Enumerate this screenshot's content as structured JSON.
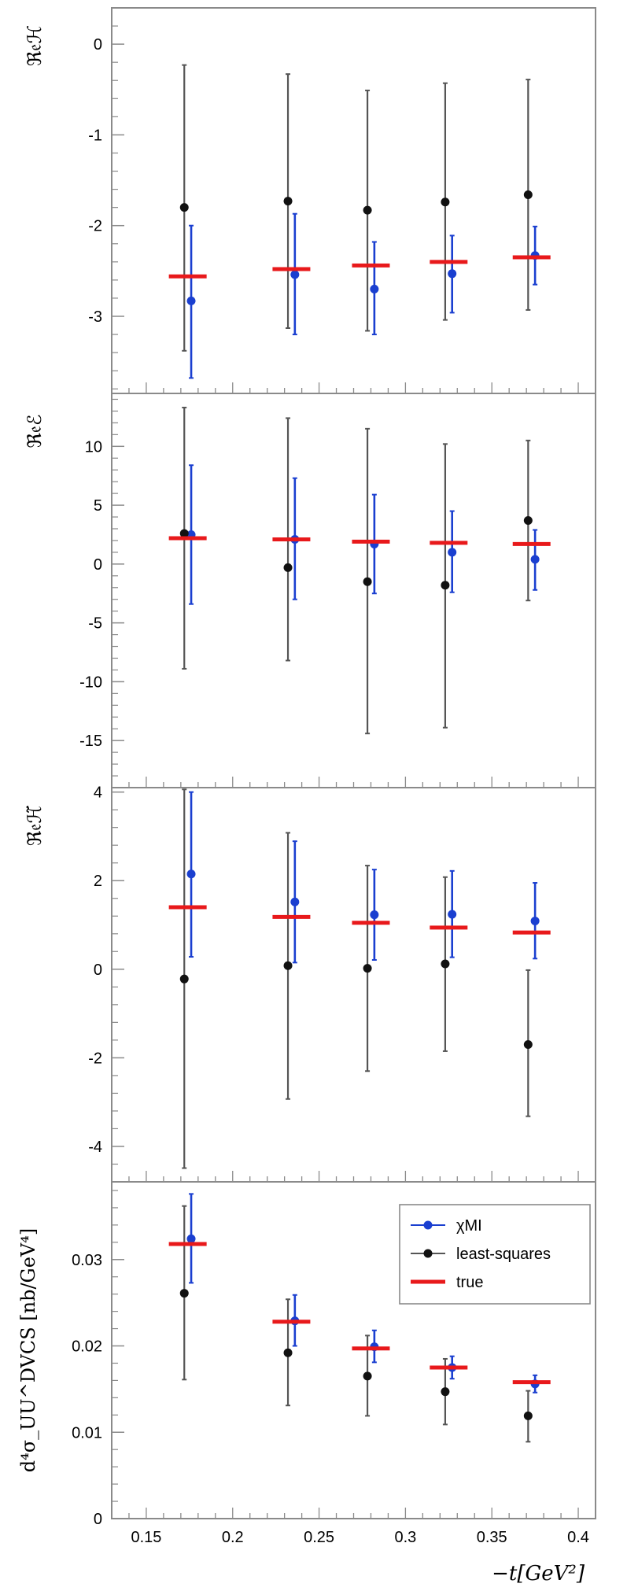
{
  "chart_data": [
    {
      "type": "scatter",
      "ylabel": "ℜ𝔢ℋ",
      "ylim": [
        -3.85,
        0.4
      ],
      "yticks": [
        0,
        -1,
        -2,
        -3
      ],
      "ytick_labels": [
        "0",
        "-1",
        "-2",
        "-3"
      ],
      "series": [
        {
          "name": "χMI",
          "color": "#1a3fd0",
          "points": [
            {
              "x": 0.176,
              "y": -2.83,
              "lo": -3.68,
              "hi": -2.0
            },
            {
              "x": 0.236,
              "y": -2.54,
              "lo": -3.2,
              "hi": -1.87
            },
            {
              "x": 0.282,
              "y": -2.7,
              "lo": -3.2,
              "hi": -2.18
            },
            {
              "x": 0.327,
              "y": -2.53,
              "lo": -2.96,
              "hi": -2.11
            },
            {
              "x": 0.375,
              "y": -2.33,
              "lo": -2.65,
              "hi": -2.01
            }
          ]
        },
        {
          "name": "least-squares",
          "color": "#111111",
          "points": [
            {
              "x": 0.172,
              "y": -1.8,
              "lo": -3.38,
              "hi": -0.23
            },
            {
              "x": 0.232,
              "y": -1.73,
              "lo": -3.13,
              "hi": -0.33
            },
            {
              "x": 0.278,
              "y": -1.83,
              "lo": -3.16,
              "hi": -0.51
            },
            {
              "x": 0.323,
              "y": -1.74,
              "lo": -3.04,
              "hi": -0.43
            },
            {
              "x": 0.371,
              "y": -1.66,
              "lo": -2.93,
              "hi": -0.39
            }
          ]
        },
        {
          "name": "true",
          "color": "#e8191b",
          "points": [
            {
              "x": 0.174,
              "y": -2.56
            },
            {
              "x": 0.234,
              "y": -2.48
            },
            {
              "x": 0.28,
              "y": -2.44
            },
            {
              "x": 0.325,
              "y": -2.4
            },
            {
              "x": 0.373,
              "y": -2.35
            }
          ]
        }
      ]
    },
    {
      "type": "scatter",
      "ylabel": "ℜ𝔢ℰ",
      "ylim": [
        -19,
        14.5
      ],
      "yticks": [
        10,
        5,
        0,
        -5,
        -10,
        -15
      ],
      "ytick_labels": [
        "10",
        "5",
        "0",
        "-5",
        "-10",
        "-15"
      ],
      "series": [
        {
          "name": "χMI",
          "color": "#1a3fd0",
          "points": [
            {
              "x": 0.176,
              "y": 2.5,
              "lo": -3.4,
              "hi": 8.4
            },
            {
              "x": 0.236,
              "y": 2.1,
              "lo": -3.0,
              "hi": 7.3
            },
            {
              "x": 0.282,
              "y": 1.7,
              "lo": -2.5,
              "hi": 5.9
            },
            {
              "x": 0.327,
              "y": 1.0,
              "lo": -2.4,
              "hi": 4.5
            },
            {
              "x": 0.375,
              "y": 0.4,
              "lo": -2.2,
              "hi": 2.9
            }
          ]
        },
        {
          "name": "least-squares",
          "color": "#111111",
          "points": [
            {
              "x": 0.172,
              "y": 2.6,
              "lo": -8.9,
              "hi": 13.3
            },
            {
              "x": 0.232,
              "y": -0.3,
              "lo": -8.2,
              "hi": 12.4
            },
            {
              "x": 0.278,
              "y": -1.5,
              "lo": -14.4,
              "hi": 11.5
            },
            {
              "x": 0.323,
              "y": -1.8,
              "lo": -13.9,
              "hi": 10.2
            },
            {
              "x": 0.371,
              "y": 3.7,
              "lo": -3.1,
              "hi": 10.5
            }
          ]
        },
        {
          "name": "true",
          "color": "#e8191b",
          "points": [
            {
              "x": 0.174,
              "y": 2.2
            },
            {
              "x": 0.234,
              "y": 2.1
            },
            {
              "x": 0.28,
              "y": 1.9
            },
            {
              "x": 0.325,
              "y": 1.8
            },
            {
              "x": 0.373,
              "y": 1.7
            }
          ]
        }
      ]
    },
    {
      "type": "scatter",
      "ylabel": "ℜ𝔢ℋ̃",
      "ylim": [
        -4.8,
        4.1
      ],
      "yticks": [
        4,
        2,
        0,
        -2,
        -4
      ],
      "ytick_labels": [
        "4",
        "2",
        "0",
        "-2",
        "-4"
      ],
      "series": [
        {
          "name": "χMI",
          "color": "#1a3fd0",
          "points": [
            {
              "x": 0.176,
              "y": 2.15,
              "lo": 0.28,
              "hi": 4.0
            },
            {
              "x": 0.236,
              "y": 1.52,
              "lo": 0.15,
              "hi": 2.89
            },
            {
              "x": 0.282,
              "y": 1.23,
              "lo": 0.21,
              "hi": 2.25
            },
            {
              "x": 0.327,
              "y": 1.24,
              "lo": 0.27,
              "hi": 2.22
            },
            {
              "x": 0.375,
              "y": 1.09,
              "lo": 0.24,
              "hi": 1.95
            }
          ]
        },
        {
          "name": "least-squares",
          "color": "#111111",
          "points": [
            {
              "x": 0.172,
              "y": -0.22,
              "lo": -4.49,
              "hi": 4.06
            },
            {
              "x": 0.232,
              "y": 0.08,
              "lo": -2.93,
              "hi": 3.08
            },
            {
              "x": 0.278,
              "y": 0.02,
              "lo": -2.3,
              "hi": 2.34
            },
            {
              "x": 0.323,
              "y": 0.12,
              "lo": -1.85,
              "hi": 2.08
            },
            {
              "x": 0.371,
              "y": -1.7,
              "lo": -3.32,
              "hi": -0.02
            }
          ]
        },
        {
          "name": "true",
          "color": "#e8191b",
          "points": [
            {
              "x": 0.174,
              "y": 1.4
            },
            {
              "x": 0.234,
              "y": 1.18
            },
            {
              "x": 0.28,
              "y": 1.05
            },
            {
              "x": 0.325,
              "y": 0.94
            },
            {
              "x": 0.373,
              "y": 0.83
            }
          ]
        }
      ]
    },
    {
      "type": "scatter",
      "ylabel": "d⁴σ_UU^DVCS [nb/GeV⁴]",
      "xlabel": "−t[GeV²]",
      "xlim": [
        0.13,
        0.41
      ],
      "xticks": [
        0.15,
        0.2,
        0.25,
        0.3,
        0.35,
        0.4
      ],
      "xtick_labels": [
        "0.15",
        "0.2",
        "0.25",
        "0.3",
        "0.35",
        "0.4"
      ],
      "ylim": [
        0,
        0.039
      ],
      "yticks": [
        0.03,
        0.02,
        0.01,
        0
      ],
      "ytick_labels": [
        "0.03",
        "0.02",
        "0.01",
        "0"
      ],
      "legend": {
        "position": "top-right",
        "entries": [
          "χMI",
          "least-squares",
          "true"
        ]
      },
      "series": [
        {
          "name": "χMI",
          "color": "#1a3fd0",
          "points": [
            {
              "x": 0.176,
              "y": 0.0324,
              "lo": 0.0273,
              "hi": 0.0376
            },
            {
              "x": 0.236,
              "y": 0.0229,
              "lo": 0.02,
              "hi": 0.0259
            },
            {
              "x": 0.282,
              "y": 0.0199,
              "lo": 0.0181,
              "hi": 0.0218
            },
            {
              "x": 0.327,
              "y": 0.0175,
              "lo": 0.0162,
              "hi": 0.0188
            },
            {
              "x": 0.375,
              "y": 0.0156,
              "lo": 0.0146,
              "hi": 0.0166
            }
          ]
        },
        {
          "name": "least-squares",
          "color": "#111111",
          "points": [
            {
              "x": 0.172,
              "y": 0.0261,
              "lo": 0.0161,
              "hi": 0.0362
            },
            {
              "x": 0.232,
              "y": 0.0192,
              "lo": 0.0131,
              "hi": 0.0254
            },
            {
              "x": 0.278,
              "y": 0.0165,
              "lo": 0.0119,
              "hi": 0.0212
            },
            {
              "x": 0.323,
              "y": 0.0147,
              "lo": 0.0109,
              "hi": 0.0185
            },
            {
              "x": 0.371,
              "y": 0.0119,
              "lo": 0.0089,
              "hi": 0.0148
            }
          ]
        },
        {
          "name": "true",
          "color": "#e8191b",
          "points": [
            {
              "x": 0.174,
              "y": 0.0318
            },
            {
              "x": 0.234,
              "y": 0.0228
            },
            {
              "x": 0.28,
              "y": 0.0197
            },
            {
              "x": 0.325,
              "y": 0.0175
            },
            {
              "x": 0.373,
              "y": 0.0158
            }
          ]
        }
      ]
    }
  ]
}
